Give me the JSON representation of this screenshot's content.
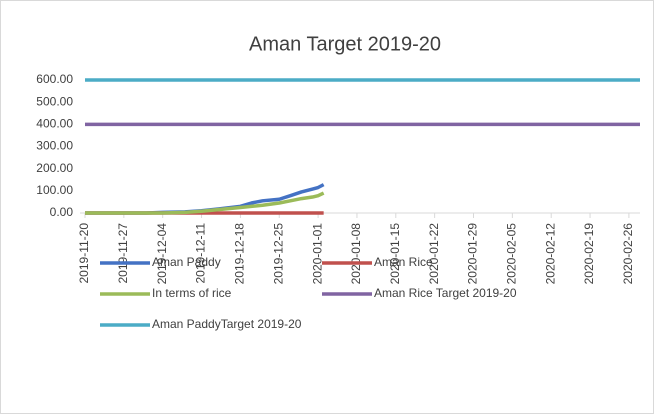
{
  "chart_data": {
    "type": "line",
    "title": "Aman Target 2019-20",
    "xlim": [
      "2019-11-20",
      "2020-02-28"
    ],
    "xticks": [
      "2019-11-20",
      "2019-11-27",
      "2019-12-04",
      "2019-12-11",
      "2019-12-18",
      "2019-12-25",
      "2020-01-01",
      "2020-01-08",
      "2020-01-15",
      "2020-01-22",
      "2020-01-29",
      "2020-02-05",
      "2020-02-12",
      "2020-02-19",
      "2020-02-26"
    ],
    "ylim": [
      0,
      600
    ],
    "yticks": [
      {
        "value": 0,
        "label": "0.00"
      },
      {
        "value": 100,
        "label": "100.00"
      },
      {
        "value": 200,
        "label": "200.00"
      },
      {
        "value": 300,
        "label": "300.00"
      },
      {
        "value": 400,
        "label": "400.00"
      },
      {
        "value": 500,
        "label": "500.00"
      },
      {
        "value": 600,
        "label": "600.00"
      }
    ],
    "series": [
      {
        "name": "Aman Paddy",
        "color": "#4472c4",
        "x": [
          "2019-11-20",
          "2019-11-27",
          "2019-12-01",
          "2019-12-04",
          "2019-12-08",
          "2019-12-11",
          "2019-12-14",
          "2019-12-18",
          "2019-12-20",
          "2019-12-22",
          "2019-12-25",
          "2019-12-27",
          "2019-12-29",
          "2019-12-31",
          "2020-01-01",
          "2020-01-02"
        ],
        "values": [
          0,
          0,
          0,
          3,
          5,
          10,
          18,
          30,
          45,
          55,
          62,
          78,
          95,
          108,
          115,
          128
        ]
      },
      {
        "name": "Aman Rice",
        "color": "#c0504d",
        "x": [
          "2019-11-20",
          "2020-01-02"
        ],
        "values": [
          0,
          0
        ]
      },
      {
        "name": "In terms of rice",
        "color": "#9bbb59",
        "x": [
          "2019-11-20",
          "2019-12-04",
          "2019-12-08",
          "2019-12-11",
          "2019-12-14",
          "2019-12-18",
          "2019-12-22",
          "2019-12-25",
          "2019-12-27",
          "2019-12-29",
          "2019-12-31",
          "2020-01-01",
          "2020-01-02"
        ],
        "values": [
          0,
          0,
          3,
          8,
          15,
          25,
          35,
          45,
          55,
          65,
          72,
          78,
          90
        ]
      },
      {
        "name": "Aman Rice Target 2019-20",
        "color": "#8064a2",
        "x": [
          "2019-11-20",
          "2020-02-28"
        ],
        "values": [
          400,
          400
        ]
      },
      {
        "name": "Aman PaddyTarget 2019-20",
        "color": "#4bacc6",
        "x": [
          "2019-11-20",
          "2020-02-28"
        ],
        "values": [
          600,
          600
        ]
      }
    ]
  }
}
